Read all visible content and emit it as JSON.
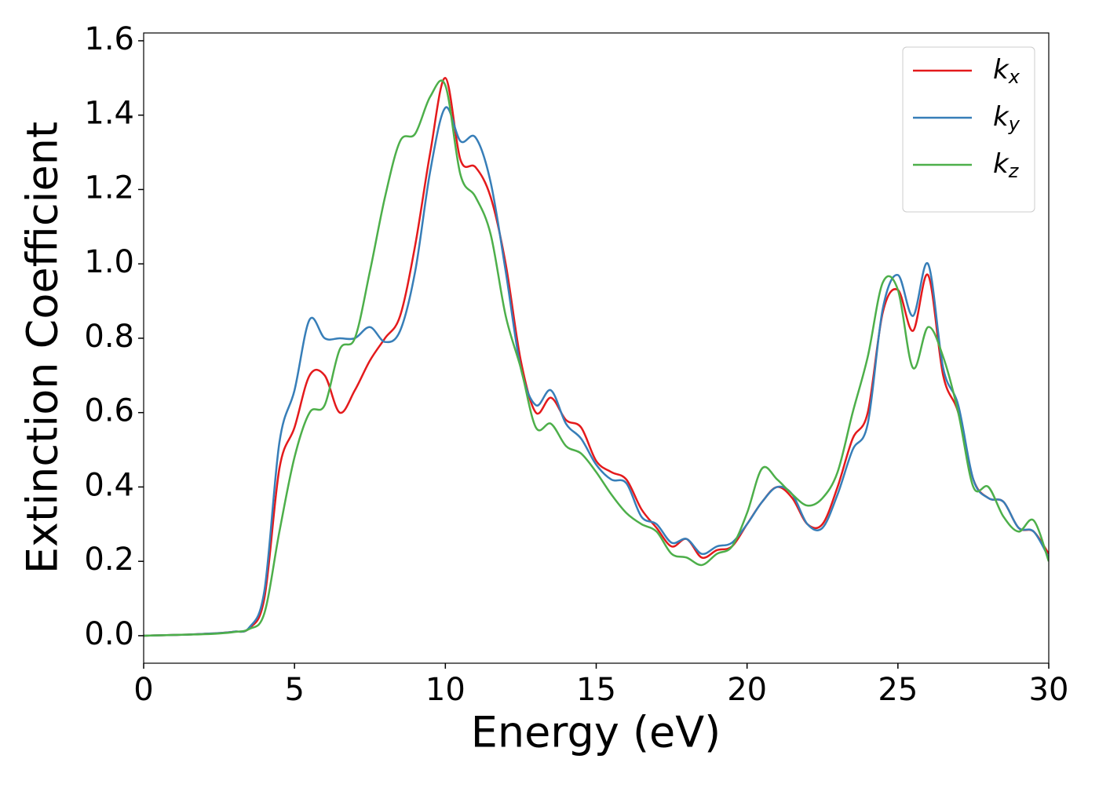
{
  "chart_data": {
    "type": "line",
    "xlabel": "Energy (eV)",
    "ylabel": "Extinction Coefficient",
    "x": [
      0,
      0.5,
      1,
      1.5,
      2,
      2.5,
      3,
      3.5,
      4,
      4.5,
      5,
      5.5,
      6,
      6.5,
      7,
      7.5,
      8,
      8.5,
      9,
      9.5,
      10,
      10.5,
      11,
      11.5,
      12,
      12.5,
      13,
      13.5,
      14,
      14.5,
      15,
      15.5,
      16,
      16.5,
      17,
      17.5,
      18,
      18.5,
      19,
      19.5,
      20,
      20.5,
      21,
      21.5,
      22,
      22.5,
      23,
      23.5,
      24,
      24.5,
      25,
      25.5,
      26,
      26.5,
      27,
      27.5,
      28,
      28.5,
      29,
      29.5,
      30
    ],
    "series": [
      {
        "name": "kx",
        "color": "#e41a1c",
        "values": [
          0,
          0.001,
          0.002,
          0.003,
          0.005,
          0.007,
          0.011,
          0.02,
          0.1,
          0.45,
          0.56,
          0.7,
          0.7,
          0.6,
          0.66,
          0.74,
          0.8,
          0.86,
          1.05,
          1.3,
          1.5,
          1.28,
          1.26,
          1.18,
          1.0,
          0.74,
          0.6,
          0.64,
          0.58,
          0.56,
          0.47,
          0.44,
          0.42,
          0.34,
          0.29,
          0.24,
          0.26,
          0.21,
          0.23,
          0.24,
          0.3,
          0.36,
          0.4,
          0.37,
          0.3,
          0.3,
          0.4,
          0.53,
          0.6,
          0.87,
          0.93,
          0.82,
          0.97,
          0.7,
          0.6,
          0.42,
          0.37,
          0.36,
          0.29,
          0.28,
          0.22
        ]
      },
      {
        "name": "ky",
        "color": "#377eb8",
        "values": [
          0,
          0.001,
          0.002,
          0.003,
          0.005,
          0.007,
          0.011,
          0.022,
          0.12,
          0.52,
          0.66,
          0.85,
          0.8,
          0.8,
          0.8,
          0.83,
          0.79,
          0.82,
          0.98,
          1.25,
          1.42,
          1.33,
          1.34,
          1.22,
          0.98,
          0.72,
          0.62,
          0.66,
          0.57,
          0.53,
          0.46,
          0.42,
          0.41,
          0.32,
          0.3,
          0.25,
          0.26,
          0.22,
          0.24,
          0.25,
          0.3,
          0.36,
          0.4,
          0.38,
          0.3,
          0.29,
          0.38,
          0.5,
          0.57,
          0.88,
          0.97,
          0.86,
          1.0,
          0.72,
          0.62,
          0.42,
          0.37,
          0.36,
          0.29,
          0.28,
          0.21
        ]
      },
      {
        "name": "kz",
        "color": "#4daf4a",
        "values": [
          0,
          0.001,
          0.002,
          0.003,
          0.004,
          0.006,
          0.01,
          0.018,
          0.06,
          0.28,
          0.48,
          0.6,
          0.62,
          0.77,
          0.8,
          0.98,
          1.18,
          1.33,
          1.35,
          1.45,
          1.48,
          1.24,
          1.18,
          1.08,
          0.86,
          0.72,
          0.56,
          0.57,
          0.51,
          0.49,
          0.44,
          0.38,
          0.33,
          0.3,
          0.28,
          0.22,
          0.21,
          0.19,
          0.22,
          0.24,
          0.33,
          0.45,
          0.42,
          0.38,
          0.35,
          0.37,
          0.44,
          0.6,
          0.75,
          0.95,
          0.93,
          0.72,
          0.83,
          0.75,
          0.6,
          0.4,
          0.4,
          0.32,
          0.28,
          0.31,
          0.2
        ]
      }
    ],
    "xlim": [
      0,
      30
    ],
    "xticks": [
      0,
      5,
      10,
      15,
      20,
      25,
      30
    ],
    "ylim": [
      -0.074,
      1.621
    ],
    "yticks": [
      {
        "value": 0,
        "label": "0.0"
      },
      0.2,
      0.4,
      0.6,
      0.8,
      {
        "value": 1,
        "label": "1.0"
      },
      1.2,
      1.4,
      1.6
    ],
    "grid": false,
    "legend": "upper right"
  }
}
